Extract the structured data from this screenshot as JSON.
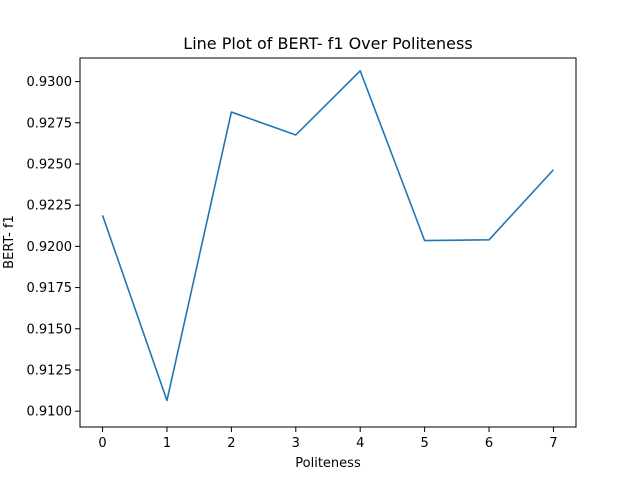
{
  "chart_data": {
    "type": "line",
    "title": "Line Plot of BERT- f1 Over Politeness",
    "xlabel": "Politeness",
    "ylabel": "BERT- f1",
    "x": [
      0,
      1,
      2,
      3,
      4,
      5,
      6,
      7
    ],
    "series": [
      {
        "values": [
          0.92188,
          0.91065,
          0.92815,
          0.92676,
          0.93065,
          0.92035,
          0.9204,
          0.92465
        ]
      }
    ],
    "xlim": [
      -0.35,
      7.35
    ],
    "ylim": [
      0.90904,
      0.93143
    ],
    "xticks": [
      "0",
      "1",
      "2",
      "3",
      "4",
      "5",
      "6",
      "7"
    ],
    "yticks": [
      "0.9100",
      "0.9125",
      "0.9150",
      "0.9175",
      "0.9200",
      "0.9225",
      "0.9250",
      "0.9275",
      "0.9300"
    ],
    "grid": false,
    "colors": {
      "line": "#1f77b4",
      "axes": "#000000"
    }
  }
}
